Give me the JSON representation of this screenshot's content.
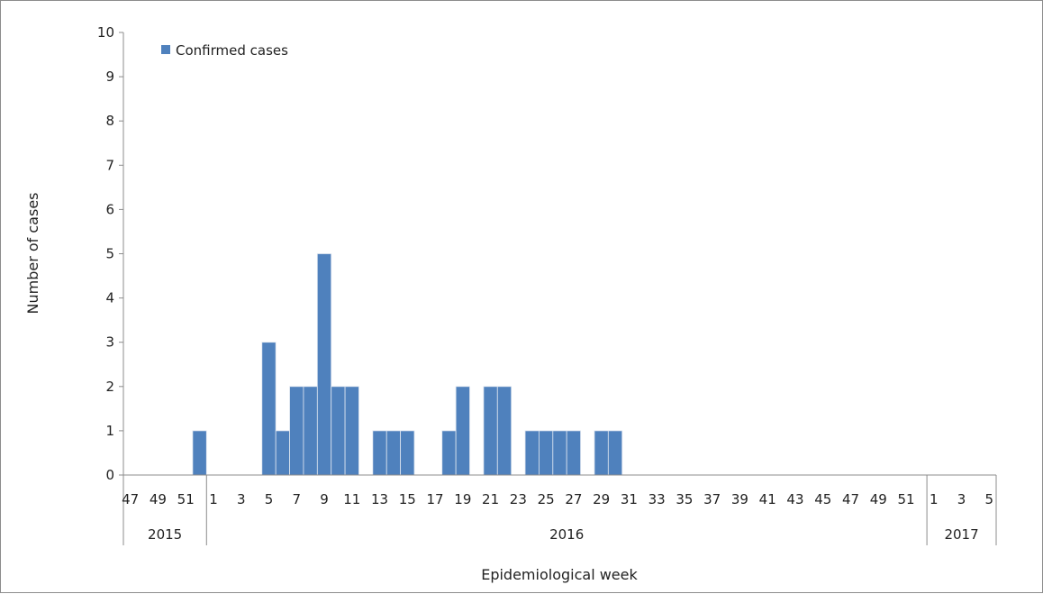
{
  "chart_data": {
    "type": "bar",
    "xlabel": "Epidemiological week",
    "ylabel": "Number of cases",
    "ylim": [
      0,
      10
    ],
    "yticks": [
      0,
      1,
      2,
      3,
      4,
      5,
      6,
      7,
      8,
      9,
      10
    ],
    "grid": false,
    "legend_position": "top-left",
    "series": [
      {
        "name": "Confirmed cases",
        "color": "#4f81bd",
        "points": [
          {
            "year": "2015",
            "week": 52,
            "value": 1
          },
          {
            "year": "2016",
            "week": 5,
            "value": 3
          },
          {
            "year": "2016",
            "week": 6,
            "value": 1
          },
          {
            "year": "2016",
            "week": 7,
            "value": 2
          },
          {
            "year": "2016",
            "week": 8,
            "value": 2
          },
          {
            "year": "2016",
            "week": 9,
            "value": 5
          },
          {
            "year": "2016",
            "week": 10,
            "value": 2
          },
          {
            "year": "2016",
            "week": 11,
            "value": 2
          },
          {
            "year": "2016",
            "week": 13,
            "value": 1
          },
          {
            "year": "2016",
            "week": 14,
            "value": 1
          },
          {
            "year": "2016",
            "week": 15,
            "value": 1
          },
          {
            "year": "2016",
            "week": 18,
            "value": 1
          },
          {
            "year": "2016",
            "week": 19,
            "value": 2
          },
          {
            "year": "2016",
            "week": 21,
            "value": 2
          },
          {
            "year": "2016",
            "week": 22,
            "value": 2
          },
          {
            "year": "2016",
            "week": 24,
            "value": 1
          },
          {
            "year": "2016",
            "week": 25,
            "value": 1
          },
          {
            "year": "2016",
            "week": 26,
            "value": 1
          },
          {
            "year": "2016",
            "week": 27,
            "value": 1
          },
          {
            "year": "2016",
            "week": 29,
            "value": 1
          },
          {
            "year": "2016",
            "week": 30,
            "value": 1
          }
        ]
      }
    ],
    "years": [
      {
        "label": "2015",
        "weeks": [
          47,
          48,
          49,
          50,
          51,
          52
        ]
      },
      {
        "label": "2016",
        "weeks": [
          1,
          2,
          3,
          4,
          5,
          6,
          7,
          8,
          9,
          10,
          11,
          12,
          13,
          14,
          15,
          16,
          17,
          18,
          19,
          20,
          21,
          22,
          23,
          24,
          25,
          26,
          27,
          28,
          29,
          30,
          31,
          32,
          33,
          34,
          35,
          36,
          37,
          38,
          39,
          40,
          41,
          42,
          43,
          44,
          45,
          46,
          47,
          48,
          49,
          50,
          51,
          52
        ]
      },
      {
        "label": "2017",
        "weeks": [
          1,
          2,
          3,
          4,
          5
        ]
      }
    ],
    "x_tick_labels": {
      "2015": [
        47,
        49,
        51
      ],
      "2016": [
        1,
        3,
        5,
        7,
        9,
        11,
        13,
        15,
        17,
        19,
        21,
        23,
        25,
        27,
        29,
        31,
        33,
        35,
        37,
        39,
        41,
        43,
        45,
        47,
        49,
        51
      ],
      "2017": [
        1,
        3,
        5
      ]
    }
  }
}
